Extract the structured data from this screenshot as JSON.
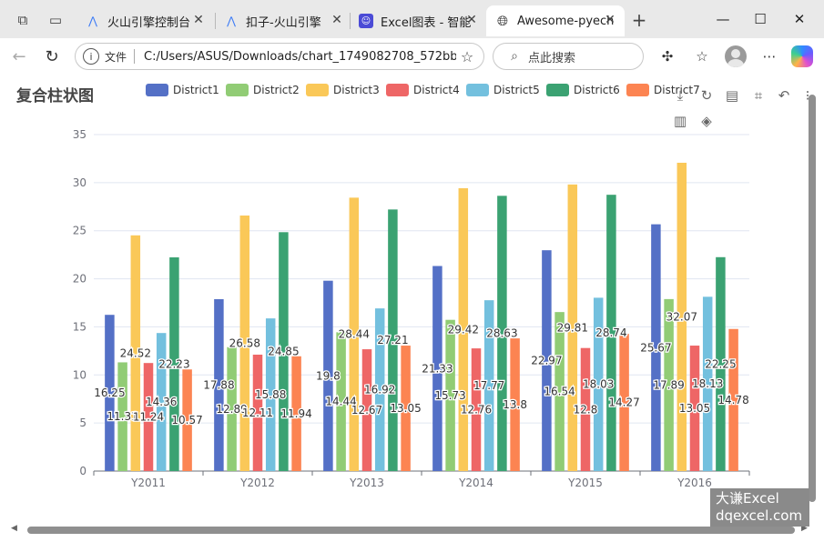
{
  "browser": {
    "tabs": [
      {
        "label": "火山引擎控制台",
        "icon": "volcano-icon",
        "active": false
      },
      {
        "label": "扣子-火山引擎",
        "icon": "volcano-icon",
        "active": false
      },
      {
        "label": "Excel图表 - 智能",
        "icon": "excel-chart-icon",
        "active": false
      },
      {
        "label": "Awesome-pyech",
        "icon": "globe-icon",
        "active": true
      }
    ],
    "address": {
      "file_label": "文件",
      "url": "C:/Users/ASUS/Downloads/chart_1749082708_572bbd..."
    },
    "search": {
      "placeholder": "点此搜索"
    }
  },
  "page": {
    "watermark": {
      "line1": "大谦Excel",
      "line2": "dqexcel.com"
    }
  },
  "chart_data": {
    "type": "bar",
    "title": "复合柱状图",
    "xlabel": "",
    "ylabel": "",
    "categories": [
      "Y2011",
      "Y2012",
      "Y2013",
      "Y2014",
      "Y2015",
      "Y2016"
    ],
    "ylim": [
      0,
      35
    ],
    "yticks": [
      0,
      5,
      10,
      15,
      20,
      25,
      30,
      35
    ],
    "legend_position": "top",
    "grid": true,
    "series": [
      {
        "name": "District1",
        "color": "#5470c6",
        "values": [
          16.25,
          17.88,
          19.8,
          21.33,
          22.97,
          25.67
        ]
      },
      {
        "name": "District2",
        "color": "#91cc75",
        "values": [
          11.31,
          12.89,
          14.44,
          15.73,
          16.54,
          17.89
        ]
      },
      {
        "name": "District3",
        "color": "#fac858",
        "values": [
          24.52,
          26.58,
          28.44,
          29.42,
          29.81,
          32.07
        ]
      },
      {
        "name": "District4",
        "color": "#ee6666",
        "values": [
          11.24,
          12.11,
          12.67,
          12.76,
          12.8,
          13.05
        ]
      },
      {
        "name": "District5",
        "color": "#73c0de",
        "values": [
          14.36,
          15.88,
          16.92,
          17.77,
          18.03,
          18.13
        ]
      },
      {
        "name": "District6",
        "color": "#3ba272",
        "values": [
          22.23,
          24.85,
          27.21,
          28.63,
          28.74,
          22.25
        ]
      },
      {
        "name": "District7",
        "color": "#fc8452",
        "values": [
          10.57,
          11.94,
          13.05,
          13.8,
          14.27,
          14.78
        ]
      }
    ]
  }
}
